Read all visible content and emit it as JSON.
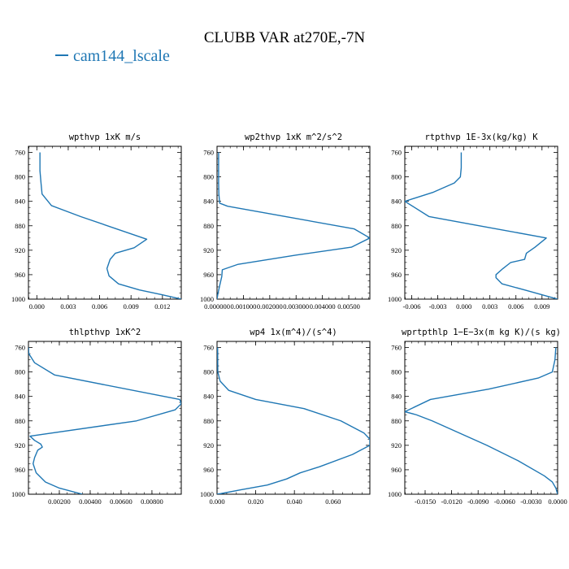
{
  "figure": {
    "title": "CLUBB VAR at270E,-7N",
    "legend": [
      "cam144_lscale"
    ],
    "line_color": "#1f77b4"
  },
  "chart_data": [
    {
      "type": "line",
      "title": "wpthvp  1xK m/s",
      "series": [
        {
          "name": "cam144_lscale",
          "x": [
            0.0003,
            0.0003,
            0.0003,
            0.0004,
            0.0005,
            0.0014,
            0.0042,
            0.0105,
            0.0093,
            0.0075,
            0.007,
            0.0067,
            0.0069,
            0.0078,
            0.0098,
            0.012,
            0.0138
          ],
          "y": [
            760,
            770,
            790,
            810,
            828,
            847,
            865,
            902,
            916,
            925,
            935,
            950,
            962,
            975,
            985,
            993,
            1000
          ]
        }
      ],
      "xlim": [
        -0.0008,
        0.0138
      ],
      "ylim": [
        1000,
        750
      ],
      "xticks": [
        0.0,
        0.003,
        0.006,
        0.009,
        0.012
      ],
      "xtick_labels": [
        "0.000",
        "0.003",
        "0.006",
        "0.009",
        "0.012"
      ],
      "yticks": [
        760,
        800,
        840,
        880,
        920,
        960,
        1000
      ]
    },
    {
      "type": "line",
      "title": "wp2thvp  1xK m^2/s^2",
      "series": [
        {
          "name": "cam144_lscale",
          "x": [
            6e-05,
            6e-05,
            6e-05,
            7e-05,
            0.0001,
            0.0004,
            0.0026,
            0.0052,
            0.0058,
            0.0051,
            0.003,
            0.0008,
            0.0002,
            0.00018,
            0.0001,
            3e-05,
            0.0
          ],
          "y": [
            760,
            780,
            810,
            828,
            843,
            848,
            865,
            885,
            900,
            915,
            928,
            943,
            952,
            963,
            978,
            992,
            1000
          ]
        }
      ],
      "xlim": [
        0.0,
        0.0058
      ],
      "ylim": [
        1000,
        750
      ],
      "xticks": [
        0.0,
        0.001,
        0.002,
        0.003,
        0.004,
        0.005
      ],
      "xtick_labels": [
        "0.000000",
        "0.001000",
        "0.002000",
        "0.003000",
        "0.004000",
        "0.00500"
      ],
      "yticks": [
        760,
        800,
        840,
        880,
        920,
        960,
        1000
      ]
    },
    {
      "type": "line",
      "title": "rtpthvp  1E-3x(kg/kg) K",
      "series": [
        {
          "name": "cam144_lscale",
          "x": [
            -0.0003,
            -0.0003,
            -0.0004,
            -0.0011,
            -0.0035,
            -0.0068,
            -0.004,
            0.0018,
            0.0095,
            0.0082,
            0.0072,
            0.007,
            0.0054,
            0.0045,
            0.0037,
            0.0037,
            0.0044,
            0.007,
            0.0108
          ],
          "y": [
            760,
            785,
            800,
            810,
            825,
            840,
            865,
            880,
            900,
            915,
            925,
            935,
            940,
            950,
            960,
            965,
            975,
            985,
            1000
          ]
        }
      ],
      "xlim": [
        -0.0068,
        0.0108
      ],
      "ylim": [
        1000,
        750
      ],
      "xticks": [
        -0.006,
        -0.003,
        0.0,
        0.003,
        0.006,
        0.009
      ],
      "xtick_labels": [
        "-0.006",
        "-0.003",
        "0.000",
        "0.003",
        "0.006",
        "0.009"
      ],
      "yticks": [
        760,
        800,
        840,
        880,
        920,
        960,
        1000
      ]
    },
    {
      "type": "line",
      "title": "thlpthvp  1xK^2",
      "series": [
        {
          "name": "cam144_lscale",
          "x": [
            1e-05,
            2e-05,
            0.0004,
            0.0017,
            0.0098,
            0.0099,
            0.0095,
            0.007,
            0.0001,
            0.0004,
            0.0008,
            0.0009,
            0.0006,
            0.0004,
            0.0003,
            0.0005,
            0.0011,
            0.002,
            0.0035
          ],
          "y": [
            760,
            770,
            785,
            805,
            845,
            852,
            862,
            880,
            905,
            912,
            918,
            923,
            928,
            940,
            950,
            965,
            980,
            990,
            1000
          ]
        }
      ],
      "xlim": [
        0.0,
        0.0099
      ],
      "ylim": [
        1000,
        750
      ],
      "xticks": [
        0.002,
        0.004,
        0.006,
        0.008
      ],
      "xtick_labels": [
        "0.00200",
        "0.00400",
        "0.00600",
        "0.00800"
      ],
      "yticks": [
        760,
        800,
        840,
        880,
        920,
        960,
        1000
      ]
    },
    {
      "type": "line",
      "title": "wp4  1x(m^4)/(s^4)",
      "series": [
        {
          "name": "cam144_lscale",
          "x": [
            0.0003,
            0.0004,
            0.0016,
            0.006,
            0.02,
            0.045,
            0.064,
            0.076,
            0.079,
            0.079,
            0.07,
            0.053,
            0.043,
            0.036,
            0.026,
            0.012,
            0.002,
            0.0
          ],
          "y": [
            760,
            800,
            815,
            830,
            845,
            860,
            880,
            900,
            910,
            920,
            935,
            955,
            965,
            975,
            985,
            993,
            999,
            1000
          ]
        }
      ],
      "xlim": [
        0.0,
        0.079
      ],
      "ylim": [
        1000,
        750
      ],
      "xticks": [
        0.0,
        0.02,
        0.04,
        0.06
      ],
      "xtick_labels": [
        "0.000",
        "0.020",
        "0.040",
        "0.060"
      ],
      "yticks": [
        760,
        800,
        840,
        880,
        920,
        960,
        1000
      ]
    },
    {
      "type": "line",
      "title": "wprtpthlp  1−E−3x(m kg K)/(s kg)",
      "series": [
        {
          "name": "cam144_lscale",
          "x": [
            -0.0002,
            -0.0003,
            -0.0006,
            -0.0022,
            -0.0078,
            -0.0144,
            -0.0173,
            -0.016,
            -0.0142,
            -0.008,
            -0.0045,
            -0.0015,
            -0.0006,
            -0.0002,
            0.0
          ],
          "y": [
            760,
            780,
            800,
            810,
            828,
            845,
            865,
            870,
            880,
            920,
            945,
            970,
            980,
            990,
            1000
          ]
        }
      ],
      "xlim": [
        -0.0173,
        0.0
      ],
      "ylim": [
        1000,
        750
      ],
      "xticks": [
        -0.015,
        -0.012,
        -0.009,
        -0.006,
        -0.003,
        0.0
      ],
      "xtick_labels": [
        "-0.0150",
        "-0.0120",
        "-0.0090",
        "-0.0060",
        "-0.0030",
        "0.0000"
      ],
      "yticks": [
        760,
        800,
        840,
        880,
        920,
        960,
        1000
      ]
    }
  ]
}
